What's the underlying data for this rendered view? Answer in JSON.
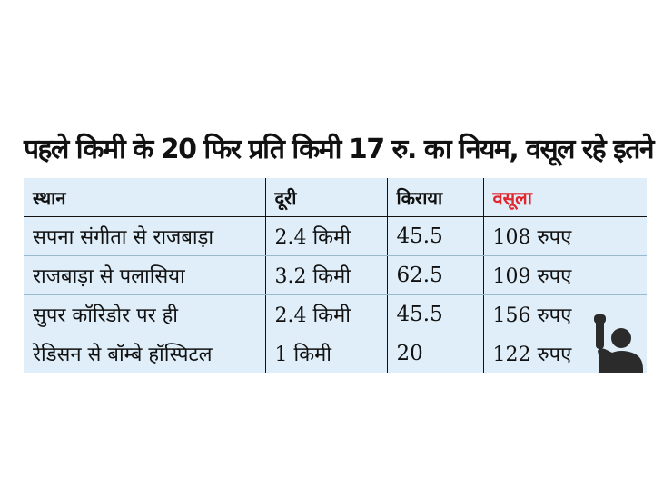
{
  "title": "पहले किमी के 20 फिर प्रति किमी 17 रु. का नियम, वसूल रहे इतने",
  "table": {
    "headers": [
      "स्थान",
      "दूरी",
      "किराया",
      "वसूला"
    ],
    "rows": [
      [
        "सपना संगीता से राजबाड़ा",
        "2.4 किमी",
        "45.5",
        "108 रुपए"
      ],
      [
        "राजबाड़ा से पलासिया",
        "3.2 किमी",
        "62.5",
        "109 रुपए"
      ],
      [
        "सुपर कॉरिडोर पर ही",
        "2.4 किमी",
        "45.5",
        "156 रुपए"
      ],
      [
        "रेडिसन से बॉम्बे हॉस्पिटल",
        "1 किमी",
        "20",
        "122 रुपए"
      ]
    ]
  },
  "colors": {
    "table_background": "#dfeef8",
    "accent_header": "#e0262e",
    "figure": "#2b2b2b"
  },
  "icon": "raised-hand-person-icon"
}
